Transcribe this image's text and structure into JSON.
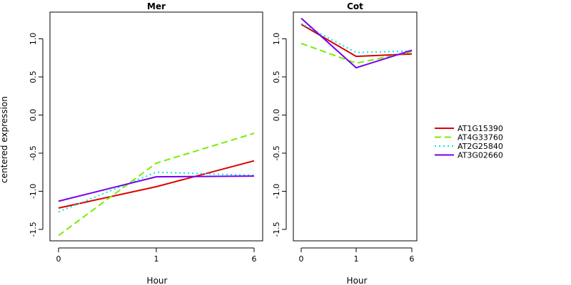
{
  "chart_data": {
    "type": "line",
    "ylabel": "centered expression",
    "xlabel": "Hour",
    "x_categories": [
      "0",
      "1",
      "6"
    ],
    "ylim": [
      -1.65,
      1.35
    ],
    "y_ticks": [
      -1.5,
      -1.0,
      -0.5,
      0.0,
      0.5,
      1.0
    ],
    "y_tick_labels": [
      "-1.5",
      "-1.0",
      "-0.5",
      "0.0",
      "0.5",
      "1.0"
    ],
    "grid": false,
    "legend_position": "right",
    "series_styles": [
      {
        "name": "AT1G15390",
        "color": "#dd0000",
        "dash": "solid"
      },
      {
        "name": "AT4G33760",
        "color": "#77ee00",
        "dash": "dashed"
      },
      {
        "name": "AT2G25840",
        "color": "#00e5e5",
        "dash": "dotted"
      },
      {
        "name": "AT3G02660",
        "color": "#7700ee",
        "dash": "solid"
      }
    ],
    "panels": [
      {
        "title": "Mer",
        "series": [
          {
            "name": "AT1G15390",
            "values": [
              -1.22,
              -0.94,
              -0.6
            ]
          },
          {
            "name": "AT4G33760",
            "values": [
              -1.58,
              -0.63,
              -0.24
            ]
          },
          {
            "name": "AT2G25840",
            "values": [
              -1.27,
              -0.75,
              -0.79
            ]
          },
          {
            "name": "AT3G02660",
            "values": [
              -1.13,
              -0.81,
              -0.8
            ]
          }
        ]
      },
      {
        "title": "Cot",
        "series": [
          {
            "name": "AT1G15390",
            "values": [
              1.19,
              0.77,
              0.8
            ]
          },
          {
            "name": "AT4G33760",
            "values": [
              0.94,
              0.68,
              0.83
            ]
          },
          {
            "name": "AT2G25840",
            "values": [
              1.2,
              0.82,
              0.84
            ]
          },
          {
            "name": "AT3G02660",
            "values": [
              1.27,
              0.62,
              0.85
            ]
          }
        ]
      }
    ]
  }
}
